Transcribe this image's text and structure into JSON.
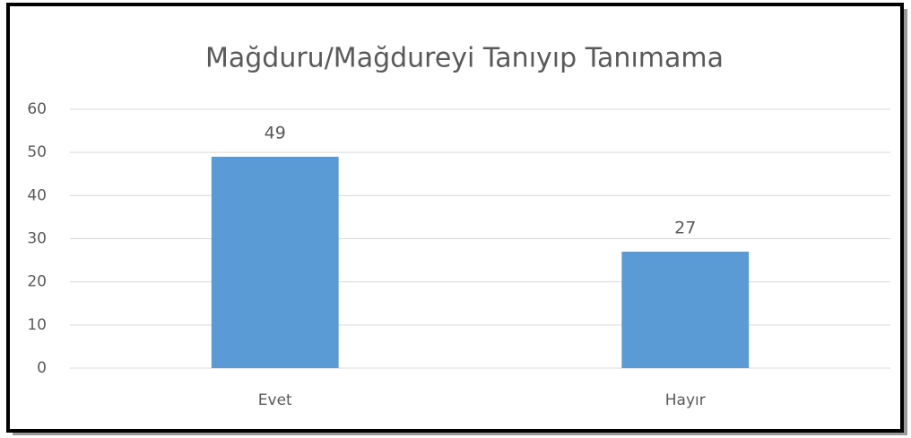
{
  "chart_data": {
    "type": "bar",
    "title": "Mağduru/Mağdureyi Tanıyıp Tanımama",
    "categories": [
      "Evet",
      "Hayır"
    ],
    "values": [
      49,
      27
    ],
    "color": "#5b9bd5",
    "ylim": [
      0,
      60
    ],
    "yticks": [
      0,
      10,
      20,
      30,
      40,
      50,
      60
    ],
    "grid": true
  }
}
